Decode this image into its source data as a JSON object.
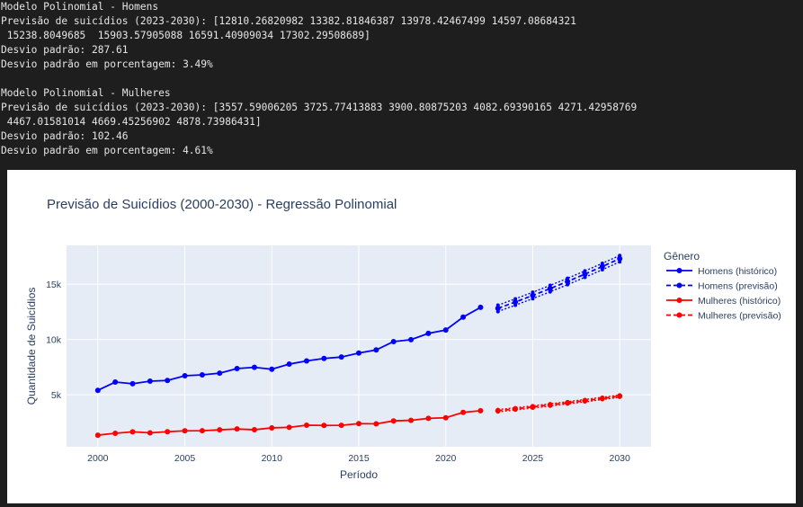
{
  "console": {
    "lines": [
      "Modelo Polinomial - Homens",
      "Previsão de suicídios (2023-2030): [12810.26820982 13382.81846387 13978.42467499 14597.08684321",
      " 15238.8049685  15903.57905088 16591.40909034 17302.29508689]",
      "Desvio padrão: 287.61",
      "Desvio padrão em porcentagem: 3.49%",
      "",
      "Modelo Polinomial - Mulheres",
      "Previsão de suicídios (2023-2030): [3557.59006205 3725.77413883 3900.80875203 4082.69390165 4271.42958769",
      " 4467.01581014 4669.45256902 4878.73986431]",
      "Desvio padrão: 102.46",
      "Desvio padrão em porcentagem: 4.61%"
    ]
  },
  "chart_data": {
    "type": "line",
    "title": "Previsão de Suicídios (2000-2030) - Regressão Polinomial",
    "xlabel": "Período",
    "ylabel": "Quantidade de Suicídios",
    "xlim": [
      1998.2,
      2031.8
    ],
    "ylim": [
      300,
      18500
    ],
    "x_ticks": [
      2000,
      2005,
      2010,
      2015,
      2020,
      2025,
      2030
    ],
    "x_tick_labels": [
      "2000",
      "2005",
      "2010",
      "2015",
      "2020",
      "2025",
      "2030"
    ],
    "y_ticks": [
      5000,
      10000,
      15000
    ],
    "y_tick_labels": [
      "5k",
      "10k",
      "15k"
    ],
    "grid": true,
    "plot_bgcolor": "#e5ecf6",
    "legend": {
      "title": "Gênero",
      "placement": "right"
    },
    "series": [
      {
        "name": "Homens (histórico)",
        "color": "#0000ff",
        "dash": "solid",
        "x": [
          2000,
          2001,
          2002,
          2003,
          2004,
          2005,
          2006,
          2007,
          2008,
          2009,
          2010,
          2011,
          2012,
          2013,
          2014,
          2015,
          2016,
          2017,
          2018,
          2019,
          2020,
          2021,
          2022
        ],
        "y": [
          5400,
          6150,
          6000,
          6230,
          6290,
          6720,
          6800,
          6950,
          7370,
          7480,
          7310,
          7770,
          8060,
          8280,
          8410,
          8770,
          9050,
          9810,
          9980,
          10550,
          10850,
          12020,
          12900
        ]
      },
      {
        "name": "Homens (previsão)",
        "color": "#0000ff",
        "dash": "dash",
        "x": [
          2023,
          2024,
          2025,
          2026,
          2027,
          2028,
          2029,
          2030
        ],
        "y": [
          12810.27,
          13382.82,
          13978.42,
          14597.09,
          15238.8,
          15903.58,
          16591.41,
          17302.3
        ]
      },
      {
        "name": "Mulheres (histórico)",
        "color": "#ff0000",
        "dash": "solid",
        "x": [
          2000,
          2001,
          2002,
          2003,
          2004,
          2005,
          2006,
          2007,
          2008,
          2009,
          2010,
          2011,
          2012,
          2013,
          2014,
          2015,
          2016,
          2017,
          2018,
          2019,
          2020,
          2021,
          2022
        ],
        "y": [
          1350,
          1520,
          1650,
          1560,
          1660,
          1740,
          1750,
          1830,
          1910,
          1840,
          2010,
          2060,
          2250,
          2230,
          2240,
          2390,
          2370,
          2640,
          2690,
          2870,
          2920,
          3410,
          3560
        ]
      },
      {
        "name": "Mulheres (previsão)",
        "color": "#ff0000",
        "dash": "dash",
        "x": [
          2023,
          2024,
          2025,
          2026,
          2027,
          2028,
          2029,
          2030
        ],
        "y": [
          3557.59,
          3725.77,
          3900.81,
          4082.69,
          4271.43,
          4467.02,
          4669.45,
          4878.74
        ]
      }
    ],
    "confidence_bands": [
      {
        "series": "Homens (previsão)",
        "color": "#0000ff",
        "std": 287.61
      },
      {
        "series": "Mulheres (previsão)",
        "color": "#ff0000",
        "std": 102.46
      }
    ]
  }
}
